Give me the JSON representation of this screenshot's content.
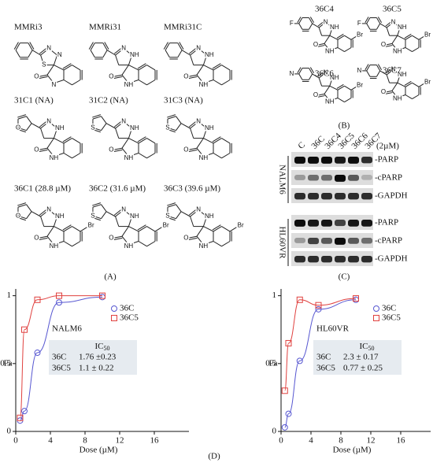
{
  "panel_a": {
    "label": "(A)",
    "compounds": [
      {
        "name": "MMRi3",
        "atoms": {
          "r1": "N",
          "r2": "N",
          "r3": "S",
          "o": "O",
          "n": "N"
        }
      },
      {
        "name": "MMRi31",
        "atoms": {
          "r1": "N",
          "r2": "NH",
          "o": "O",
          "n": "NH"
        }
      },
      {
        "name": "MMRi31C",
        "atoms": {
          "r1": "N",
          "r2": "NH",
          "o": "O",
          "n": "NH"
        }
      },
      {
        "name": "31C1 (NA)",
        "atoms": {
          "het": "O",
          "r1": "N",
          "r2": "NH",
          "o": "O",
          "n": "NH"
        }
      },
      {
        "name": "31C2 (NA)",
        "atoms": {
          "het": "S",
          "r1": "N",
          "r2": "NH",
          "o": "O",
          "n": "NH"
        }
      },
      {
        "name": "31C3 (NA)",
        "atoms": {
          "het": "S",
          "r1": "N",
          "r2": "NH",
          "o": "O",
          "n": "NH"
        }
      },
      {
        "name": "36C1 (28.8 µM)",
        "atoms": {
          "het": "O",
          "r1": "N",
          "r2": "NH",
          "o": "O",
          "n": "NH",
          "sub": "Br"
        }
      },
      {
        "name": "36C2 (31.6 µM)",
        "atoms": {
          "het": "S",
          "r1": "N",
          "r2": "NH",
          "o": "O",
          "n": "NH",
          "sub": "Br"
        }
      },
      {
        "name": "36C3 (39.6 µM)",
        "atoms": {
          "het": "S",
          "r1": "N",
          "r2": "NH",
          "o": "O",
          "n": "NH",
          "sub": "Br"
        }
      }
    ]
  },
  "panel_b": {
    "label": "(B)",
    "compounds": [
      {
        "name": "36C4",
        "atoms": {
          "arsub": "F",
          "r1": "N",
          "r2": "NH",
          "o": "O",
          "n": "NH",
          "sub": "Br"
        }
      },
      {
        "name": "36C5",
        "atoms": {
          "arsub": "F",
          "r1": "N",
          "r2": "NH",
          "o": "O",
          "n": "NH",
          "sub": "Br"
        }
      },
      {
        "name": "36C6",
        "atoms": {
          "arsub": "N",
          "r1": "N",
          "r2": "NH",
          "o": "O",
          "n": "NH",
          "sub": "Br"
        }
      },
      {
        "name": "36C7",
        "atoms": {
          "arsub": "N",
          "r1": "N",
          "r2": "NH",
          "o": "O",
          "n": "NH",
          "sub": "Br"
        }
      }
    ]
  },
  "panel_c": {
    "label": "(C)",
    "lanes": [
      "C",
      "36C",
      "36C4",
      "36C5",
      "36C6",
      "36C7"
    ],
    "dose": "(2µM)",
    "blots": [
      {
        "cell_line": "NALM6",
        "bands": [
          "-PARP",
          "-cPARP",
          "-GAPDH"
        ]
      },
      {
        "cell_line": "HL60VR",
        "bands": [
          "-PARP",
          "-cPARP",
          "-GAPDH"
        ]
      }
    ]
  },
  "panel_d_label": "(D)",
  "chart_data": [
    {
      "type": "scatter",
      "annotation": "NALM6",
      "xlabel": "Dose (µM)",
      "ylabel": "Fa",
      "x": [
        0.5,
        1,
        2.5,
        5,
        10
      ],
      "xlim": [
        0,
        20
      ],
      "xticks": [
        0,
        4,
        8,
        12,
        16
      ],
      "ylim": [
        0,
        1.05
      ],
      "yticks": [
        0,
        0.5,
        1
      ],
      "series": [
        {
          "name": "36C",
          "color": "#5757d1",
          "marker": "circle",
          "values": [
            0.08,
            0.15,
            0.58,
            0.95,
            0.99
          ]
        },
        {
          "name": "36C5",
          "color": "#e0413f",
          "marker": "square",
          "values": [
            0.1,
            0.75,
            0.97,
            1.0,
            1.0
          ]
        }
      ],
      "table": {
        "header": {
          "main": "IC",
          "sub": "50"
        },
        "rows": [
          [
            "36C",
            "1.76 ±0.23"
          ],
          [
            "36C5",
            "1.1 ± 0.22"
          ]
        ]
      }
    },
    {
      "type": "scatter",
      "annotation": "HL60VR",
      "xlabel": "Dose (µM)",
      "ylabel": "Fa",
      "x": [
        0.5,
        1,
        2.5,
        5,
        10
      ],
      "xlim": [
        0,
        20
      ],
      "xticks": [
        0,
        4,
        8,
        12,
        16
      ],
      "ylim": [
        0,
        1.05
      ],
      "yticks": [
        0,
        0.5,
        1
      ],
      "series": [
        {
          "name": "36C",
          "color": "#5757d1",
          "marker": "circle",
          "values": [
            0.03,
            0.13,
            0.52,
            0.9,
            0.97
          ]
        },
        {
          "name": "36C5",
          "color": "#e0413f",
          "marker": "square",
          "values": [
            0.3,
            0.65,
            0.97,
            0.93,
            0.98
          ]
        }
      ],
      "table": {
        "header": {
          "main": "IC",
          "sub": "50"
        },
        "rows": [
          [
            "36C",
            "2.3 ± 0.17"
          ],
          [
            "36C5",
            "0.77 ± 0.25"
          ]
        ]
      }
    }
  ]
}
